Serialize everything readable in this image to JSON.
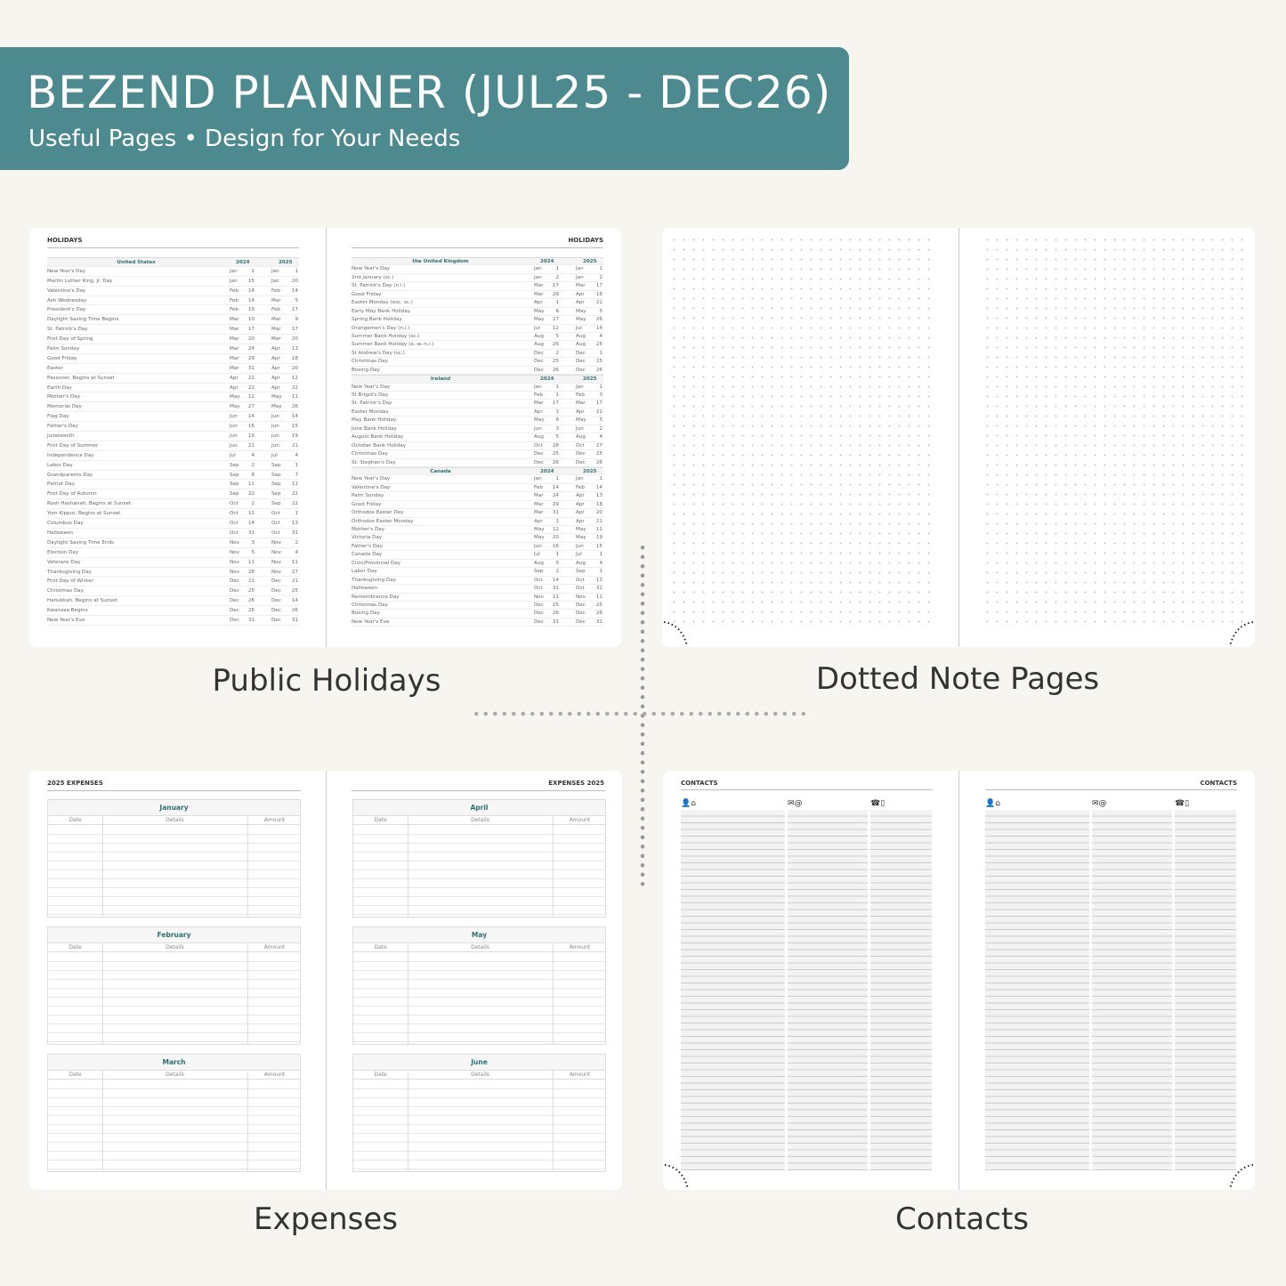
{
  "banner": {
    "title": "BEZEND PLANNER (JUL25 - DEC26)",
    "subtitle": "Useful Pages  •  Design for Your Needs",
    "color": "#4d8a90"
  },
  "captions": {
    "holidays": "Public Holidays",
    "dotted": "Dotted Note Pages",
    "expenses": "Expenses",
    "contacts": "Contacts"
  },
  "holidays": {
    "page_title": "HOLIDAYS",
    "years": [
      "2024",
      "2025"
    ],
    "left": [
      {
        "country": "United States",
        "rows": [
          [
            "New Year's Day",
            "Jan",
            "1",
            "Jan",
            "1"
          ],
          [
            "Martin Luther King, Jr. Day",
            "Jan",
            "15",
            "Jan",
            "20"
          ],
          [
            "Valentine's Day",
            "Feb",
            "14",
            "Feb",
            "14"
          ],
          [
            "Ash Wednesday",
            "Feb",
            "14",
            "Mar",
            "5"
          ],
          [
            "President's Day",
            "Feb",
            "19",
            "Feb",
            "17"
          ],
          [
            "Daylight Saving Time Begins",
            "Mar",
            "10",
            "Mar",
            "9"
          ],
          [
            "St. Patrick's Day",
            "Mar",
            "17",
            "Mar",
            "17"
          ],
          [
            "First Day of Spring",
            "Mar",
            "20",
            "Mar",
            "20"
          ],
          [
            "Palm Sunday",
            "Mar",
            "24",
            "Apr",
            "13"
          ],
          [
            "Good Friday",
            "Mar",
            "29",
            "Apr",
            "18"
          ],
          [
            "Easter",
            "Mar",
            "31",
            "Apr",
            "20"
          ],
          [
            "Passover, Begins at Sunset",
            "Apr",
            "22",
            "Apr",
            "12"
          ],
          [
            "Earth Day",
            "Apr",
            "22",
            "Apr",
            "22"
          ],
          [
            "Mother's Day",
            "May",
            "12",
            "May",
            "11"
          ],
          [
            "Memorial Day",
            "May",
            "27",
            "May",
            "26"
          ],
          [
            "Flag Day",
            "Jun",
            "14",
            "Jun",
            "14"
          ],
          [
            "Father's Day",
            "Jun",
            "16",
            "Jun",
            "15"
          ],
          [
            "Juneteenth",
            "Jun",
            "19",
            "Jun",
            "19"
          ],
          [
            "First Day of Summer",
            "Jun",
            "21",
            "Jun",
            "21"
          ],
          [
            "Independence Day",
            "Jul",
            "4",
            "Jul",
            "4"
          ],
          [
            "Labor Day",
            "Sep",
            "2",
            "Sep",
            "1"
          ],
          [
            "Grandparents Day",
            "Sep",
            "8",
            "Sep",
            "7"
          ],
          [
            "Patriot Day",
            "Sep",
            "11",
            "Sep",
            "11"
          ],
          [
            "First Day of Autumn",
            "Sep",
            "22",
            "Sep",
            "22"
          ],
          [
            "Rosh Hashanah, Begins at Sunset",
            "Oct",
            "2",
            "Sep",
            "22"
          ],
          [
            "Yom Kippur, Begins at Sunset",
            "Oct",
            "11",
            "Oct",
            "1"
          ],
          [
            "Columbus Day",
            "Oct",
            "14",
            "Oct",
            "13"
          ],
          [
            "Halloween",
            "Oct",
            "31",
            "Oct",
            "31"
          ],
          [
            "Daylight Saving Time Ends",
            "Nov",
            "3",
            "Nov",
            "2"
          ],
          [
            "Election Day",
            "Nov",
            "5",
            "Nov",
            "4"
          ],
          [
            "Veterans Day",
            "Nov",
            "11",
            "Nov",
            "11"
          ],
          [
            "Thanksgiving Day",
            "Nov",
            "28",
            "Nov",
            "27"
          ],
          [
            "First Day of Winter",
            "Dec",
            "21",
            "Dec",
            "21"
          ],
          [
            "Christmas Day",
            "Dec",
            "25",
            "Dec",
            "25"
          ],
          [
            "Hanukkah, Begins at Sunset",
            "Dec",
            "26",
            "Dec",
            "14"
          ],
          [
            "Kwanzaa Begins",
            "Dec",
            "26",
            "Dec",
            "26"
          ],
          [
            "New Year's Eve",
            "Dec",
            "31",
            "Dec",
            "31"
          ]
        ]
      }
    ],
    "right": [
      {
        "country": "the United Kingdom",
        "rows": [
          [
            "New Year's Day",
            "Jan",
            "1",
            "Jan",
            "1"
          ],
          [
            "2nd January (sc.)",
            "Jan",
            "2",
            "Jan",
            "2"
          ],
          [
            "St. Patrick's Day (n.i.)",
            "Mar",
            "17",
            "Mar",
            "17"
          ],
          [
            "Good Friday",
            "Mar",
            "29",
            "Apr",
            "18"
          ],
          [
            "Easter Monday (exc. sc.)",
            "Apr",
            "1",
            "Apr",
            "21"
          ],
          [
            "Early May Bank Holiday",
            "May",
            "6",
            "May",
            "5"
          ],
          [
            "Spring Bank Holiday",
            "May",
            "27",
            "May",
            "26"
          ],
          [
            "Orangemen's Day (n.i.)",
            "Jul",
            "12",
            "Jul",
            "14"
          ],
          [
            "Summer Bank Holiday (sc.)",
            "Aug",
            "5",
            "Aug",
            "4"
          ],
          [
            "Summer Bank Holiday (e.-w.-n.i.)",
            "Aug",
            "26",
            "Aug",
            "25"
          ],
          [
            "St Andrew's Day (sc.)",
            "Dec",
            "2",
            "Dec",
            "1"
          ],
          [
            "Christmas Day",
            "Dec",
            "25",
            "Dec",
            "25"
          ],
          [
            "Boxing Day",
            "Dec",
            "26",
            "Dec",
            "26"
          ]
        ]
      },
      {
        "country": "Ireland",
        "rows": [
          [
            "New Year's Day",
            "Jan",
            "1",
            "Jan",
            "1"
          ],
          [
            "St Brigid's Day",
            "Feb",
            "1",
            "Feb",
            "3"
          ],
          [
            "St. Patrick's Day",
            "Mar",
            "17",
            "Mar",
            "17"
          ],
          [
            "Easter Monday",
            "Apr",
            "1",
            "Apr",
            "21"
          ],
          [
            "May Bank Holiday",
            "May",
            "6",
            "May",
            "5"
          ],
          [
            "June Bank Holiday",
            "Jun",
            "3",
            "Jun",
            "2"
          ],
          [
            "August Bank Holiday",
            "Aug",
            "5",
            "Aug",
            "4"
          ],
          [
            "October Bank Holiday",
            "Oct",
            "28",
            "Oct",
            "27"
          ],
          [
            "Christmas Day",
            "Dec",
            "25",
            "Dec",
            "25"
          ],
          [
            "St. Stephen's Day",
            "Dec",
            "26",
            "Dec",
            "26"
          ]
        ]
      },
      {
        "country": "Canada",
        "rows": [
          [
            "New Year's Day",
            "Jan",
            "1",
            "Jan",
            "1"
          ],
          [
            "Valentine's Day",
            "Feb",
            "14",
            "Feb",
            "14"
          ],
          [
            "Palm Sunday",
            "Mar",
            "24",
            "Apr",
            "13"
          ],
          [
            "Good Friday",
            "Mar",
            "29",
            "Apr",
            "18"
          ],
          [
            "Orthodox Easter Day",
            "Mar",
            "31",
            "Apr",
            "20"
          ],
          [
            "Orthodox Easter Monday",
            "Apr",
            "1",
            "Apr",
            "21"
          ],
          [
            "Mother's Day",
            "May",
            "12",
            "May",
            "11"
          ],
          [
            "Victoria Day",
            "May",
            "20",
            "May",
            "19"
          ],
          [
            "Father's Day",
            "Jun",
            "16",
            "Jun",
            "15"
          ],
          [
            "Canada Day",
            "Jul",
            "1",
            "Jul",
            "1"
          ],
          [
            "Civic/Provincial Day",
            "Aug",
            "5",
            "Aug",
            "4"
          ],
          [
            "Labor Day",
            "Sep",
            "2",
            "Sep",
            "1"
          ],
          [
            "Thanksgiving Day",
            "Oct",
            "14",
            "Oct",
            "13"
          ],
          [
            "Halloween",
            "Oct",
            "31",
            "Oct",
            "31"
          ],
          [
            "Remembrance Day",
            "Nov",
            "11",
            "Nov",
            "11"
          ],
          [
            "Christmas Day",
            "Dec",
            "25",
            "Dec",
            "25"
          ],
          [
            "Boxing Day",
            "Dec",
            "26",
            "Dec",
            "26"
          ],
          [
            "New Year's Eve",
            "Dec",
            "31",
            "Dec",
            "31"
          ]
        ]
      }
    ]
  },
  "expenses": {
    "left_title": "2025 EXPENSES",
    "right_title": "EXPENSES 2025",
    "columns": [
      "Date",
      "Details",
      "Amount"
    ],
    "left_months": [
      "January",
      "February",
      "March"
    ],
    "right_months": [
      "April",
      "May",
      "June"
    ]
  },
  "contacts": {
    "title": "CONTACTS",
    "icons": [
      "person-home-icon",
      "mail-at-icon",
      "phone-mobile-icon"
    ],
    "glyphs": [
      "👤⌂",
      "✉@",
      "☎▯"
    ]
  }
}
